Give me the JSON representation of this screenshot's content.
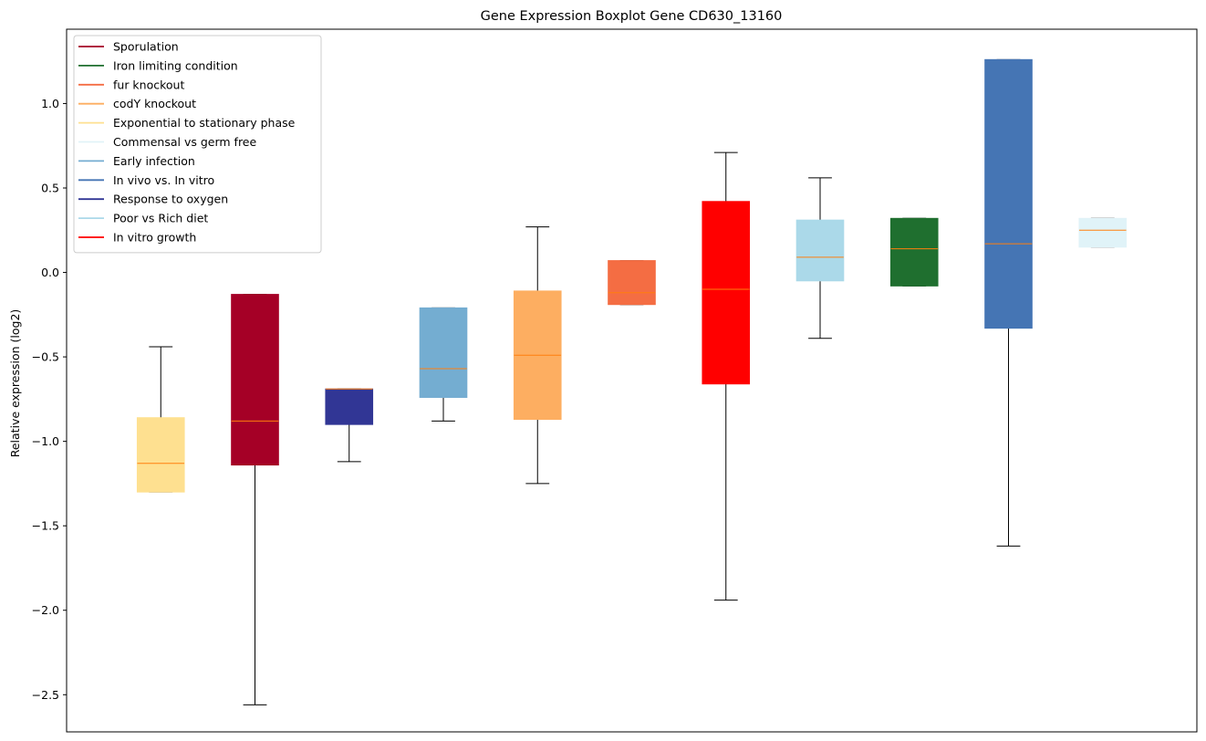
{
  "chart_data": {
    "type": "boxplot",
    "title": "Gene Expression Boxplot Gene CD630_13160",
    "xlabel": "",
    "ylabel": "Relative expression (log2)",
    "ylim": [
      -2.72,
      1.44
    ],
    "yticks": [
      -2.5,
      -2.0,
      -1.5,
      -1.0,
      -0.5,
      0.0,
      0.5,
      1.0
    ],
    "ytick_labels": [
      "−2.5",
      "−2.0",
      "−1.5",
      "−1.0",
      "−0.5",
      "0.0",
      "0.5",
      "1.0"
    ],
    "grid": false,
    "legend_position": "top-left",
    "median_color": "#ff7f0e",
    "legend": [
      {
        "label": "Sporulation",
        "color": "#a50026"
      },
      {
        "label": "Iron limiting condition",
        "color": "#1f6f2f"
      },
      {
        "label": "fur knockout",
        "color": "#f46d43"
      },
      {
        "label": "codY knockout",
        "color": "#fdae61"
      },
      {
        "label": "Exponential to stationary phase",
        "color": "#fee090"
      },
      {
        "label": "Commensal vs germ free",
        "color": "#e0f3f8"
      },
      {
        "label": "Early infection",
        "color": "#74add1"
      },
      {
        "label": "In vivo vs. In vitro",
        "color": "#4575b4"
      },
      {
        "label": "Response to oxygen",
        "color": "#313695"
      },
      {
        "label": "Poor vs Rich diet",
        "color": "#abd9e9"
      },
      {
        "label": "In vitro growth",
        "color": "#ff0000"
      }
    ],
    "boxes": [
      {
        "group": "Exponential to stationary phase",
        "color": "#fee090",
        "whislo": -1.3,
        "q1": -1.3,
        "median": -1.13,
        "q3": -0.86,
        "whishi": -0.44
      },
      {
        "group": "Sporulation",
        "color": "#a50026",
        "whislo": -2.56,
        "q1": -1.14,
        "median": -0.88,
        "q3": -0.13,
        "whishi": -0.13
      },
      {
        "group": "Response to oxygen",
        "color": "#313695",
        "whislo": -1.12,
        "q1": -0.9,
        "median": -0.69,
        "q3": -0.69,
        "whishi": -0.69
      },
      {
        "group": "Early infection",
        "color": "#74add1",
        "whislo": -0.88,
        "q1": -0.74,
        "median": -0.57,
        "q3": -0.21,
        "whishi": -0.21
      },
      {
        "group": "codY knockout",
        "color": "#fdae61",
        "whislo": -1.25,
        "q1": -0.87,
        "median": -0.49,
        "q3": -0.11,
        "whishi": 0.27
      },
      {
        "group": "fur knockout",
        "color": "#f46d43",
        "whislo": -0.19,
        "q1": -0.19,
        "median": -0.12,
        "q3": 0.07,
        "whishi": 0.07
      },
      {
        "group": "In vitro growth",
        "color": "#ff0000",
        "whislo": -1.94,
        "q1": -0.66,
        "median": -0.1,
        "q3": 0.42,
        "whishi": 0.71
      },
      {
        "group": "Poor vs Rich diet",
        "color": "#abd9e9",
        "whislo": -0.39,
        "q1": -0.05,
        "median": 0.09,
        "q3": 0.31,
        "whishi": 0.56
      },
      {
        "group": "Iron limiting condition",
        "color": "#1f6f2f",
        "whislo": -0.08,
        "q1": -0.08,
        "median": 0.14,
        "q3": 0.32,
        "whishi": 0.32
      },
      {
        "group": "In vivo vs. In vitro",
        "color": "#4575b4",
        "whislo": -1.62,
        "q1": -0.33,
        "median": 0.17,
        "q3": 1.26,
        "whishi": 1.26
      },
      {
        "group": "Commensal vs germ free",
        "color": "#e0f3f8",
        "whislo": 0.15,
        "q1": 0.15,
        "median": 0.25,
        "q3": 0.32,
        "whishi": 0.32
      }
    ]
  }
}
